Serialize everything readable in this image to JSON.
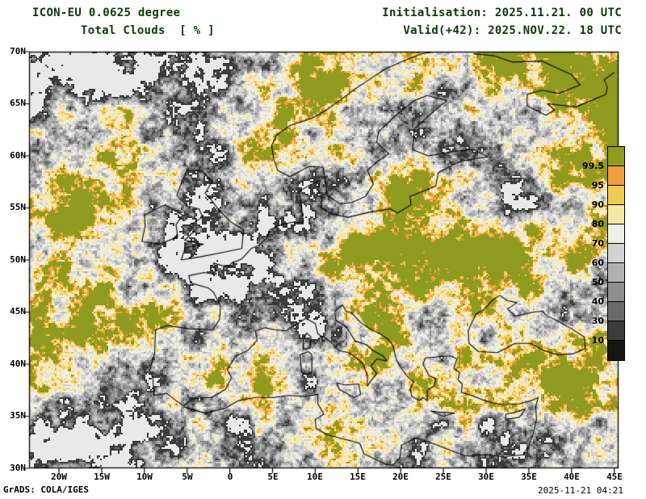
{
  "header": {
    "model_line": "ICON-EU 0.0625 degree",
    "variable_line": "Total Clouds  [ % ]",
    "init_line": "Initialisation: 2025.11.21. 00 UTC",
    "valid_line": "Valid(+42): 2025.NOV.22. 18 UTC"
  },
  "footer": {
    "credit": "GrADS: COLA/IGES",
    "timestamp": "2025-11-21 04:21"
  },
  "axes": {
    "lat_labels": [
      "70N",
      "65N",
      "60N",
      "55N",
      "50N",
      "45N",
      "40N",
      "35N",
      "30N"
    ],
    "lon_labels": [
      "20W",
      "15W",
      "10W",
      "5W",
      "0",
      "5E",
      "10E",
      "15E",
      "20E",
      "25E",
      "30E",
      "35E",
      "40E",
      "45E"
    ]
  },
  "colorbar": {
    "levels": [
      10,
      30,
      40,
      50,
      60,
      70,
      80,
      90,
      95,
      99.5
    ],
    "labels": [
      "99.5",
      "95",
      "90",
      "80",
      "70",
      "60",
      "50",
      "40",
      "30",
      "10"
    ],
    "colors_top_to_bottom": [
      "#8e9b1f",
      "#ee9f3c",
      "#f2ca52",
      "#f6e6a8",
      "#eeeee6",
      "#d2d2d2",
      "#b1b1b1",
      "#8e8e8e",
      "#6a6a6a",
      "#3c3c3c",
      "#151515"
    ]
  },
  "map": {
    "background": "#e9e9e9",
    "coastline_color": "#000000"
  },
  "colors": {
    "header_text": "#0a3a0a",
    "footer_text": "#000000",
    "frame": "#000000"
  }
}
